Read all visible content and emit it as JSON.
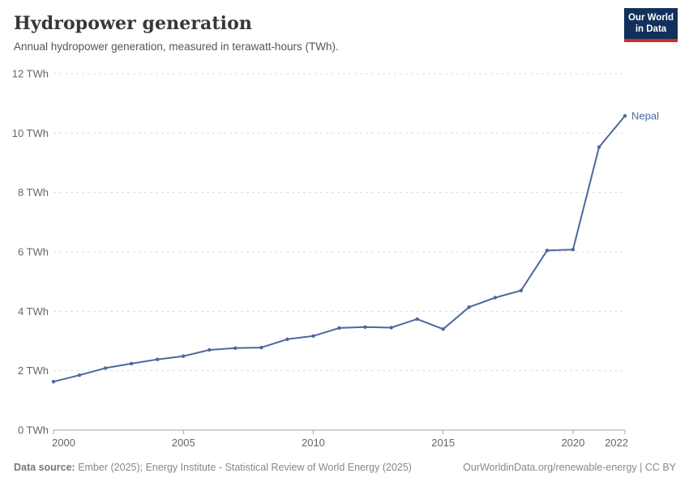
{
  "header": {
    "title": "Hydropower generation",
    "subtitle": "Annual hydropower generation, measured in terawatt-hours (TWh)."
  },
  "logo": {
    "line1": "Our World",
    "line2": "in Data",
    "bg_color": "#12305b",
    "bar_color": "#cb3025"
  },
  "chart_data": {
    "type": "line",
    "title": "Hydropower generation",
    "subtitle": "Annual hydropower generation, measured in terawatt-hours (TWh).",
    "unit": "TWh",
    "x": [
      2000,
      2001,
      2002,
      2003,
      2004,
      2005,
      2006,
      2007,
      2008,
      2009,
      2010,
      2011,
      2012,
      2013,
      2014,
      2015,
      2016,
      2017,
      2018,
      2019,
      2020,
      2021,
      2022
    ],
    "series": [
      {
        "name": "Nepal",
        "color": "#4c689c",
        "values": [
          1.63,
          1.85,
          2.09,
          2.24,
          2.38,
          2.49,
          2.7,
          2.76,
          2.78,
          3.06,
          3.17,
          3.44,
          3.47,
          3.45,
          3.74,
          3.4,
          4.14,
          4.46,
          4.7,
          6.05,
          6.08,
          9.53,
          10.58
        ]
      }
    ],
    "xlim": [
      2000,
      2022
    ],
    "ylim": [
      0,
      12
    ],
    "yticks": [
      0,
      2,
      4,
      6,
      8,
      10,
      12
    ],
    "ytick_labels": [
      "0 TWh",
      "2 TWh",
      "4 TWh",
      "6 TWh",
      "8 TWh",
      "10 TWh",
      "12 TWh"
    ],
    "xticks": [
      2000,
      2005,
      2010,
      2015,
      2020,
      2022
    ],
    "xtick_labels": [
      "2000",
      "2005",
      "2010",
      "2015",
      "2020",
      "2022"
    ],
    "grid": "horizontal-dashed",
    "legend": "end-of-line-label",
    "colors": {
      "gridline": "#dcdcdc",
      "axis": "#a3a3a3",
      "tick_text": "#666666"
    }
  },
  "footer": {
    "datasource_label": "Data source:",
    "datasource_text": " Ember (2025); Energy Institute - Statistical Review of World Energy (2025)",
    "url": "OurWorldinData.org/renewable-energy",
    "license_suffix": " | CC BY"
  }
}
